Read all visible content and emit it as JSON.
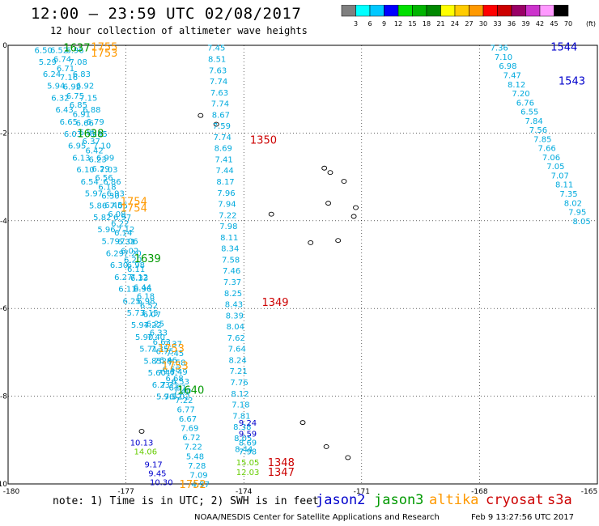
{
  "title": "12:00 – 23:59 UTC 02/08/2017",
  "subtitle": "12 hour collection of altimeter wave heights",
  "note": "note: 1) Time is in UTC; 2) SWH is in feet",
  "credit": "NOAA/NESDIS Center for Satellite Applications and Research",
  "timestamp": "Feb  9 13:27:56 UTC 2017",
  "colorbar": {
    "unit": "(ft)",
    "ticks": [
      "3",
      "6",
      "9",
      "12",
      "15",
      "18",
      "21",
      "24",
      "27",
      "30",
      "33",
      "36",
      "39",
      "42",
      "45",
      "70"
    ],
    "colors": [
      "#7f7f7f",
      "#00ffff",
      "#00c8ff",
      "#0000ff",
      "#00e000",
      "#00b400",
      "#008800",
      "#ffff00",
      "#ffcc00",
      "#ff9900",
      "#ff0000",
      "#cc0000",
      "#990066",
      "#cc33cc",
      "#ff99ff",
      "#000000"
    ]
  },
  "missions": [
    {
      "name": "jason2",
      "color": "#0000cc"
    },
    {
      "name": "jason3",
      "color": "#009900"
    },
    {
      "name": "altika",
      "color": "#ff9900"
    },
    {
      "name": "cryosat",
      "color": "#cc0000"
    },
    {
      "name": "s3a",
      "color": "#cc0000"
    }
  ],
  "map": {
    "lon_range": [
      -180,
      -165
    ],
    "lat_range": [
      -10,
      0
    ],
    "x_ticks": [
      "-180",
      "-177",
      "-174",
      "-171",
      "-168",
      "-165"
    ],
    "y_ticks": [
      "0",
      "-2",
      "-4",
      "-6",
      "-8",
      "-10"
    ],
    "lon_tick_values": [
      -180,
      -177,
      -174,
      -171,
      -168,
      -165
    ],
    "lat_tick_values": [
      0,
      -2,
      -4,
      -6,
      -8,
      -10
    ]
  },
  "tracks": [
    {
      "id": "a",
      "lon_start": -179.1,
      "lat_start": -0.1,
      "lon_end": -176.0,
      "lat_end": -8.0,
      "values": [
        "6.50",
        "5.29",
        "6.24",
        "5.94",
        "6.32",
        "6.43",
        "6.65",
        "6.03",
        "6.95",
        "6.13",
        "6.10",
        "6.54",
        "5.97",
        "5.86",
        "5.82",
        "5.96",
        "5.79",
        "6.29",
        "6.30",
        "6.27",
        "6.11",
        "6.25",
        "5.73",
        "5.94",
        "5.90",
        "5.71",
        "5.85",
        "5.60",
        "6.23",
        "5.96"
      ],
      "color": "#00aadd"
    },
    {
      "id": "b",
      "lon_start": -178.7,
      "lat_start": -0.1,
      "lon_end": -175.6,
      "lat_end": -8.0,
      "values": [
        "6.52",
        "6.74",
        "6.71",
        "7.16",
        "6.92",
        "6.75",
        "6.85",
        "6.91",
        "6.66",
        "6.89",
        "6.37",
        "6.42",
        "6.23",
        "6.29",
        "6.56",
        "6.18",
        "6.30",
        "6.45",
        "6.08",
        "6.22",
        "6.14",
        "6.31",
        "6.02",
        "6.20",
        "6.11",
        "6.33",
        "6.44",
        "6.18",
        "6.52",
        "6.07",
        "6.25",
        "6.33",
        "6.63",
        "6.75",
        "6.46",
        "6.58",
        "6.68",
        "6.91",
        "7.02"
      ],
      "color": "#00aadd"
    },
    {
      "id": "c",
      "lon_start": -178.3,
      "lat_start": -0.1,
      "lon_end": -175.8,
      "lat_end": -8.0,
      "values": [
        "6.96",
        "7.08",
        "6.83",
        "6.92",
        "7.15",
        "6.88",
        "6.79",
        "6.95",
        "7.10",
        "6.99",
        "7.03",
        "6.86",
        "6.93",
        "7.05",
        "6.97",
        "7.12",
        "7.06",
        "7.20",
        "6.98",
        "7.12",
        "6.96",
        "6.98",
        "7.15",
        "7.22",
        "7.40",
        "7.35",
        "7.28",
        "7.47",
        "7.31",
        "7.52"
      ],
      "color": "#00aadd"
    },
    {
      "id": "d",
      "lon_start": -175.8,
      "lat_start": -6.8,
      "lon_end": -175.1,
      "lat_end": -10.0,
      "values": [
        "7.37",
        "7.45",
        "7.58",
        "6.49",
        "6.53",
        "7.40",
        "7.22",
        "6.77",
        "6.67",
        "7.69",
        "6.72",
        "7.22",
        "5.48",
        "7.28",
        "7.09",
        "4.97"
      ],
      "color": "#00aadd"
    },
    {
      "id": "e",
      "lon_start": -174.7,
      "lat_start": -0.05,
      "lon_end": -174.0,
      "lat_end": -9.2,
      "values": [
        "7.45",
        "8.51",
        "7.63",
        "7.74",
        "7.63",
        "7.74",
        "8.67",
        "7.59",
        "7.74",
        "8.69",
        "7.41",
        "7.44",
        "8.17",
        "7.96",
        "7.94",
        "7.22",
        "7.98",
        "8.11",
        "8.34",
        "7.58",
        "7.46",
        "7.37",
        "8.25",
        "8.43",
        "8.39",
        "8.04",
        "7.62",
        "7.64",
        "8.24",
        "7.21",
        "7.76",
        "8.12",
        "7.18",
        "7.81",
        "8.38",
        "8.05",
        "8.44"
      ],
      "color": "#00aadd"
    },
    {
      "id": "f",
      "lon_start": -167.5,
      "lat_start": -0.05,
      "lon_end": -165.4,
      "lat_end": -4.0,
      "values": [
        "7.36",
        "7.10",
        "6.98",
        "7.47",
        "8.12",
        "7.20",
        "6.76",
        "6.55",
        "7.84",
        "7.56",
        "7.85",
        "7.66",
        "7.06",
        "7.05",
        "7.07",
        "8.11",
        "7.35",
        "8.02",
        "7.95",
        "8.05"
      ],
      "color": "#00aadd"
    }
  ],
  "extra_values": [
    {
      "text": "10.13",
      "lon": -176.6,
      "lat": -9.05,
      "color": "#0000cc"
    },
    {
      "text": "14.06",
      "lon": -176.5,
      "lat": -9.25,
      "color": "#66cc00"
    },
    {
      "text": "9.17",
      "lon": -176.3,
      "lat": -9.55,
      "color": "#0000cc"
    },
    {
      "text": "9.45",
      "lon": -176.2,
      "lat": -9.75,
      "color": "#0000cc"
    },
    {
      "text": "10.30",
      "lon": -176.1,
      "lat": -9.95,
      "color": "#0000cc"
    },
    {
      "text": "9.24",
      "lon": -173.9,
      "lat": -8.6,
      "color": "#0000cc"
    },
    {
      "text": "9.59",
      "lon": -173.9,
      "lat": -8.85,
      "color": "#0000cc"
    },
    {
      "text": "8.69",
      "lon": -173.9,
      "lat": -9.05,
      "color": "#00aadd"
    },
    {
      "text": "7.98",
      "lon": -173.9,
      "lat": -9.25,
      "color": "#00aadd"
    },
    {
      "text": "15.05",
      "lon": -173.9,
      "lat": -9.5,
      "color": "#66cc00"
    },
    {
      "text": "12.03",
      "lon": -173.9,
      "lat": -9.72,
      "color": "#66cc00"
    }
  ],
  "time_labels": [
    {
      "text": "1637",
      "lon": -178.25,
      "lat": -0.05,
      "color": "#009900"
    },
    {
      "text": "1755",
      "lon": -177.55,
      "lat": -0.03,
      "color": "#ff9900"
    },
    {
      "text": "1753",
      "lon": -177.55,
      "lat": -0.17,
      "color": "#ff9900"
    },
    {
      "text": "1638",
      "lon": -177.9,
      "lat": -2.0,
      "color": "#009900"
    },
    {
      "text": "1754",
      "lon": -176.8,
      "lat": -3.55,
      "color": "#ff9900"
    },
    {
      "text": "1754",
      "lon": -176.8,
      "lat": -3.7,
      "color": "#ff9900"
    },
    {
      "text": "1639",
      "lon": -176.45,
      "lat": -4.85,
      "color": "#009900"
    },
    {
      "text": "1753",
      "lon": -175.85,
      "lat": -6.9,
      "color": "#ff9900"
    },
    {
      "text": "1753",
      "lon": -175.75,
      "lat": -7.3,
      "color": "#ff9900"
    },
    {
      "text": "1640",
      "lon": -175.35,
      "lat": -7.85,
      "color": "#009900"
    },
    {
      "text": "1752",
      "lon": -175.3,
      "lat": -10.0,
      "color": "#ff9900"
    },
    {
      "text": "1350",
      "lon": -173.5,
      "lat": -2.15,
      "color": "#cc0000"
    },
    {
      "text": "1349",
      "lon": -173.2,
      "lat": -5.85,
      "color": "#cc0000"
    },
    {
      "text": "1348",
      "lon": -173.05,
      "lat": -9.5,
      "color": "#cc0000"
    },
    {
      "text": "1347",
      "lon": -173.05,
      "lat": -9.72,
      "color": "#cc0000"
    },
    {
      "text": "1544",
      "lon": -165.85,
      "lat": -0.03,
      "color": "#0000cc"
    },
    {
      "text": "1543",
      "lon": -165.65,
      "lat": -0.8,
      "color": "#0000cc"
    }
  ],
  "islands": [
    {
      "lon": -175.1,
      "lat": -1.6
    },
    {
      "lon": -174.7,
      "lat": -1.8
    },
    {
      "lon": -171.95,
      "lat": -2.8
    },
    {
      "lon": -171.8,
      "lat": -2.9
    },
    {
      "lon": -171.45,
      "lat": -3.1
    },
    {
      "lon": -171.85,
      "lat": -3.6
    },
    {
      "lon": -171.15,
      "lat": -3.7
    },
    {
      "lon": -173.3,
      "lat": -3.85
    },
    {
      "lon": -171.2,
      "lat": -3.9
    },
    {
      "lon": -172.3,
      "lat": -4.5
    },
    {
      "lon": -171.6,
      "lat": -4.45
    },
    {
      "lon": -172.5,
      "lat": -8.6
    },
    {
      "lon": -171.9,
      "lat": -9.15
    },
    {
      "lon": -171.35,
      "lat": -9.4
    },
    {
      "lon": -176.6,
      "lat": -8.8
    }
  ]
}
